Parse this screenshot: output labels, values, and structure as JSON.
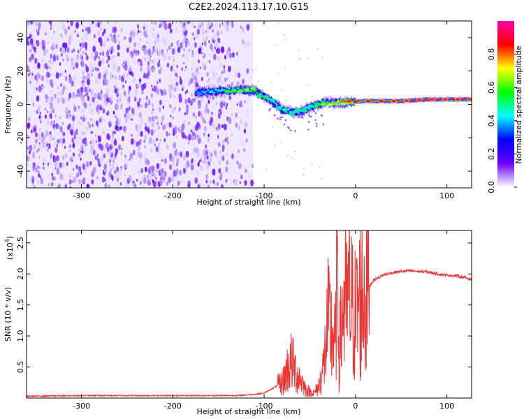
{
  "title": "C2E2.2024.113.17.10.G15",
  "chart_data": [
    {
      "type": "heatmap",
      "title": "",
      "xlabel": "Height of straight line (km)",
      "ylabel": "Frequency (Hz)",
      "xlim": [
        -360,
        127
      ],
      "ylim": [
        -50,
        50
      ],
      "xticks": [
        -300,
        -200,
        -100,
        0,
        100
      ],
      "yticks": [
        -40,
        -20,
        0,
        20,
        40
      ],
      "colorbar": {
        "label": "Normalized spectral amplitude",
        "range": [
          0.0,
          1.0
        ],
        "ticks": [
          "0.0",
          "0.2",
          "0.4",
          "0.6",
          "0.8"
        ],
        "colormap": [
          "#ffffff",
          "#6a00ff",
          "#0000ff",
          "#00ffff",
          "#00ff00",
          "#ffff00",
          "#ff0000",
          "#ff00aa"
        ]
      },
      "features": {
        "noise_region_x": [
          -360,
          -120
        ],
        "signal_track": [
          {
            "x": -175,
            "f": 7,
            "amp": 0.35
          },
          {
            "x": -150,
            "f": 8,
            "amp": 0.45
          },
          {
            "x": -125,
            "f": 9,
            "amp": 0.6
          },
          {
            "x": -110,
            "f": 8,
            "amp": 0.6
          },
          {
            "x": -95,
            "f": 3,
            "amp": 0.45
          },
          {
            "x": -80,
            "f": -3,
            "amp": 0.45
          },
          {
            "x": -65,
            "f": -5,
            "amp": 0.45
          },
          {
            "x": -50,
            "f": -2,
            "amp": 0.45
          },
          {
            "x": -35,
            "f": 1,
            "amp": 0.6
          },
          {
            "x": -15,
            "f": 1,
            "amp": 0.75
          },
          {
            "x": 10,
            "f": 2,
            "amp": 0.85
          },
          {
            "x": 50,
            "f": 2,
            "amp": 0.9
          },
          {
            "x": 80,
            "f": 3,
            "amp": 0.95
          },
          {
            "x": 110,
            "f": 3,
            "amp": 0.9
          },
          {
            "x": 127,
            "f": 3,
            "amp": 0.9
          }
        ]
      }
    },
    {
      "type": "line",
      "title": "",
      "xlabel": "Height of straight line (km)",
      "ylabel": "SNR (10 * v/v)",
      "y_multiplier": "(x10",
      "y_multiplier_exp": "4",
      "y_multiplier_close": ")",
      "xlim": [
        -360,
        127
      ],
      "ylim": [
        0,
        2.7
      ],
      "xticks": [
        -300,
        -200,
        -100,
        0,
        100
      ],
      "yticks": [
        "0.5",
        "1.0",
        "1.5",
        "2.0",
        "2.5"
      ],
      "color": "#ee3333",
      "series": [
        {
          "x": [
            -360,
            -300,
            -200,
            -130,
            -110,
            -100,
            -90,
            -80,
            -75,
            -70,
            -65,
            -60,
            -55,
            -50,
            -45,
            -40,
            -35,
            -30,
            -25,
            -22,
            -20,
            -18,
            -15,
            -12,
            -10,
            -8,
            -5,
            0,
            5,
            10,
            15,
            20,
            30,
            40,
            50,
            60,
            70,
            80,
            90,
            100,
            110,
            120,
            127
          ],
          "values": [
            0.02,
            0.03,
            0.03,
            0.03,
            0.05,
            0.07,
            0.15,
            0.25,
            0.45,
            0.6,
            0.4,
            0.3,
            0.15,
            0.1,
            0.08,
            0.2,
            0.5,
            1.2,
            1.0,
            0.8,
            2.7,
            0.6,
            1.3,
            1.6,
            1.4,
            1.6,
            1.5,
            1.3,
            1.6,
            1.7,
            1.8,
            1.9,
            1.98,
            2.02,
            2.04,
            2.05,
            2.04,
            2.03,
            2.0,
            1.98,
            1.97,
            1.94,
            1.91
          ]
        }
      ]
    }
  ]
}
